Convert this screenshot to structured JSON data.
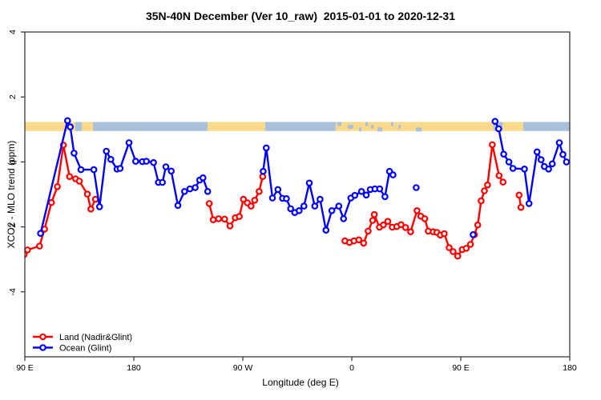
{
  "title": "35N-40N December (Ver 10_raw)  2015-01-01 to 2020-12-31",
  "chart_data": {
    "type": "line",
    "title": "35N-40N December (Ver 10_raw)  2015-01-01 to 2020-12-31",
    "xlabel": "Longitude (deg E)",
    "ylabel": "XCO2 - MLO trend (ppm)",
    "xlim": [
      90,
      540
    ],
    "ylim": [
      -6,
      4
    ],
    "grid": "off",
    "x_ticks": [
      {
        "lon": 90,
        "label": "90 E"
      },
      {
        "lon": 180,
        "label": "180"
      },
      {
        "lon": 270,
        "label": "90 W"
      },
      {
        "lon": 360,
        "label": "0"
      },
      {
        "lon": 450,
        "label": "90 E"
      },
      {
        "lon": 540,
        "label": "180"
      }
    ],
    "y_ticks": [
      {
        "value": 4,
        "label": "4"
      },
      {
        "value": 2,
        "label": "2"
      },
      {
        "value": 0,
        "label": "0"
      },
      {
        "value": -2,
        "label": "-2"
      },
      {
        "value": -4,
        "label": "-4"
      }
    ],
    "land_ocean_band": {
      "description": "horizontal strip marking land (tan) vs ocean (light blue) along the 35N-40N latitude belt",
      "value_top": 1.23,
      "value_bottom": 0.95,
      "color_land": "#fbd98a",
      "color_ocean": "#aac1de",
      "segments": [
        {
          "from": 90,
          "to": 131.7,
          "type": "land"
        },
        {
          "from": 131.7,
          "to": 137.0,
          "type": "ocean"
        },
        {
          "from": 137.0,
          "to": 146.3,
          "type": "land"
        },
        {
          "from": 146.3,
          "to": 240.9,
          "type": "ocean"
        },
        {
          "from": 240.9,
          "to": 288.5,
          "type": "land"
        },
        {
          "from": 288.5,
          "to": 346.8,
          "type": "ocean"
        },
        {
          "from": 346.8,
          "to": 477.1,
          "type": "land"
        },
        {
          "from": 477.1,
          "to": 484.4,
          "type": "ocean"
        },
        {
          "from": 484.4,
          "to": 501.6,
          "type": "land"
        },
        {
          "from": 501.6,
          "to": 540.0,
          "type": "ocean"
        }
      ],
      "ocean_flecks": [
        [
          348.0,
          351.5
        ],
        [
          356.7,
          361.3
        ],
        [
          366.0,
          368.0
        ],
        [
          371.3,
          373.3
        ],
        [
          375.9,
          377.9
        ],
        [
          381.2,
          385.2
        ],
        [
          392.4,
          394.4
        ],
        [
          398.4,
          400.4
        ],
        [
          413.0,
          417.6
        ]
      ]
    },
    "series": [
      {
        "id": "land",
        "name": "Land (Nadir&Glint)",
        "color": "#ff0000",
        "segments": [
          [
            [
              89.5,
              -2.85
            ],
            [
              92.2,
              -2.71
            ],
            [
              102.1,
              -2.59
            ],
            [
              106.3,
              -2.07
            ],
            [
              112.0,
              -1.25
            ],
            [
              116.9,
              -0.76
            ],
            [
              121.8,
              0.52
            ],
            [
              126.9,
              -0.45
            ],
            [
              131.9,
              -0.52
            ],
            [
              135.0,
              -0.59
            ],
            [
              141.6,
              -0.99
            ],
            [
              144.5,
              -1.45
            ],
            [
              148.3,
              -1.15
            ]
          ],
          [
            [
              242.3,
              -1.28
            ],
            [
              245.6,
              -1.78
            ],
            [
              250.0,
              -1.75
            ],
            [
              255.0,
              -1.76
            ],
            [
              259.4,
              -1.97
            ],
            [
              263.8,
              -1.72
            ],
            [
              267.1,
              -1.68
            ],
            [
              270.5,
              -1.15
            ],
            [
              273.8,
              -1.26
            ],
            [
              276.8,
              -1.36
            ],
            [
              279.8,
              -1.18
            ],
            [
              283.5,
              -0.91
            ],
            [
              286.4,
              -0.45
            ]
          ],
          [
            [
              354.3,
              -2.43
            ],
            [
              358.1,
              -2.48
            ],
            [
              361.8,
              -2.43
            ],
            [
              365.8,
              -2.4
            ],
            [
              369.8,
              -2.5
            ],
            [
              373.5,
              -2.13
            ],
            [
              377.3,
              -1.8
            ],
            [
              378.6,
              -1.62
            ],
            [
              382.8,
              -2.01
            ],
            [
              386.1,
              -1.94
            ],
            [
              389.7,
              -1.83
            ],
            [
              393.4,
              -2.01
            ],
            [
              397.1,
              -1.99
            ],
            [
              400.7,
              -1.93
            ],
            [
              404.4,
              -2.02
            ],
            [
              408.6,
              -2.15
            ],
            [
              413.9,
              -1.5
            ],
            [
              417.0,
              -1.67
            ],
            [
              420.3,
              -1.75
            ],
            [
              423.2,
              -2.13
            ],
            [
              427.2,
              -2.15
            ],
            [
              430.3,
              -2.17
            ],
            [
              433.1,
              -2.25
            ],
            [
              436.4,
              -2.21
            ],
            [
              440.4,
              -2.64
            ],
            [
              443.7,
              -2.76
            ],
            [
              447.5,
              -2.9
            ],
            [
              451.2,
              -2.7
            ],
            [
              454.5,
              -2.66
            ],
            [
              458.0,
              -2.54
            ],
            [
              461.3,
              -2.24
            ],
            [
              464.0,
              -1.94
            ],
            [
              466.8,
              -1.2
            ],
            [
              469.5,
              -0.89
            ],
            [
              472.1,
              -0.71
            ],
            [
              476.1,
              0.53
            ],
            [
              481.6,
              -0.42
            ],
            [
              484.9,
              -0.62
            ]
          ],
          [
            [
              498.2,
              -1.02
            ],
            [
              499.7,
              -1.4
            ]
          ]
        ]
      },
      {
        "id": "ocean",
        "name": "Ocean (Glint)",
        "color": "#0000ff",
        "segments": [
          [
            [
              103.0,
              -2.2
            ],
            [
              125.3,
              1.27
            ],
            [
              127.5,
              1.08
            ],
            [
              130.6,
              0.27
            ],
            [
              136.3,
              -0.24
            ],
            [
              147.0,
              -0.24
            ],
            [
              151.7,
              -1.38
            ],
            [
              157.3,
              0.33
            ],
            [
              161.0,
              0.08
            ],
            [
              166.1,
              -0.22
            ],
            [
              168.7,
              -0.2
            ],
            [
              176.0,
              0.59
            ],
            [
              181.5,
              0.02
            ],
            [
              187.0,
              0.01
            ],
            [
              190.4,
              0.02
            ],
            [
              196.3,
              -0.02
            ],
            [
              200.3,
              -0.63
            ],
            [
              203.6,
              -0.63
            ],
            [
              206.5,
              -0.15
            ],
            [
              210.9,
              -0.28
            ],
            [
              216.4,
              -1.34
            ],
            [
              221.9,
              -0.91
            ],
            [
              226.3,
              -0.83
            ],
            [
              230.7,
              -0.79
            ],
            [
              234.4,
              -0.56
            ],
            [
              237.1,
              -0.49
            ],
            [
              241.0,
              -0.91
            ]
          ],
          [
            [
              286.8,
              -0.29
            ],
            [
              289.4,
              0.43
            ],
            [
              294.5,
              -1.11
            ],
            [
              299.0,
              -0.85
            ],
            [
              302.8,
              -1.12
            ],
            [
              306.0,
              -1.13
            ],
            [
              309.5,
              -1.44
            ],
            [
              312.9,
              -1.56
            ],
            [
              316.5,
              -1.5
            ],
            [
              320.5,
              -1.36
            ],
            [
              324.9,
              -0.65
            ],
            [
              329.4,
              -1.36
            ],
            [
              333.8,
              -1.15
            ],
            [
              338.7,
              -2.1
            ],
            [
              343.5,
              -1.5
            ],
            [
              349.3,
              -1.36
            ],
            [
              353.2,
              -1.75
            ],
            [
              359.2,
              -1.11
            ],
            [
              362.5,
              -1.03
            ],
            [
              368.0,
              -0.91
            ],
            [
              372.0,
              -1.02
            ],
            [
              375.3,
              -0.85
            ],
            [
              379.1,
              -0.83
            ],
            [
              383.0,
              -0.83
            ],
            [
              387.4,
              -1.07
            ],
            [
              391.2,
              -0.29
            ],
            [
              394.0,
              -0.4
            ]
          ],
          [
            [
              413.2,
              -0.79
            ]
          ],
          [
            [
              460.2,
              -2.24
            ]
          ],
          [
            [
              478.3,
              1.25
            ],
            [
              481.3,
              1.02
            ],
            [
              485.5,
              0.24
            ],
            [
              489.8,
              0.0
            ],
            [
              493.1,
              -0.2
            ],
            [
              502.6,
              -0.22
            ],
            [
              506.4,
              -1.28
            ],
            [
              513.0,
              0.31
            ],
            [
              516.3,
              0.07
            ],
            [
              519.0,
              -0.14
            ],
            [
              522.5,
              -0.22
            ],
            [
              525.6,
              -0.06
            ],
            [
              531.4,
              0.59
            ],
            [
              534.4,
              0.23
            ],
            [
              537.3,
              0.0
            ]
          ]
        ]
      }
    ],
    "legend": {
      "position": "bottom-left-inside",
      "entries": [
        {
          "label": "Land (Nadir&Glint)",
          "color": "#ff0000"
        },
        {
          "label": "Ocean (Glint)",
          "color": "#0000ff"
        }
      ]
    }
  }
}
